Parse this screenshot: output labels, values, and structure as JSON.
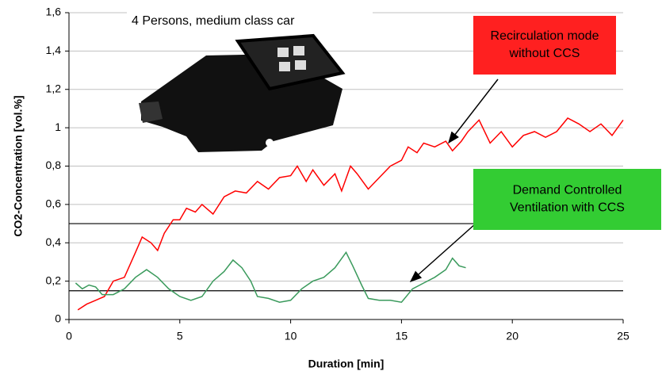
{
  "chart_data": {
    "type": "line",
    "xlabel": "Duration [min]",
    "ylabel": "CO2-Concentration [vol.%]",
    "xlim": [
      0,
      25
    ],
    "xticks": [
      0,
      5,
      10,
      15,
      20,
      25
    ],
    "ylim": [
      0,
      1.6
    ],
    "yticks": [
      0,
      {
        "value": 0.2,
        "label": "0,2"
      },
      {
        "value": 0.4,
        "label": "0,4"
      },
      {
        "value": 0.6,
        "label": "0,6"
      },
      {
        "value": 0.8,
        "label": "0,8"
      },
      1,
      {
        "value": 1.2,
        "label": "1,2"
      },
      {
        "value": 1.4,
        "label": "1,4"
      },
      {
        "value": 1.6,
        "label": "1,6"
      }
    ],
    "grid": true,
    "hlines": [
      0.5,
      0.15
    ],
    "annotations": [
      {
        "lines": [
          "4 Persons, medium class car"
        ]
      },
      {
        "lines": [
          "Recirculation mode",
          "without CCS"
        ],
        "color": "#ff2020"
      },
      {
        "lines": [
          "Demand Controlled",
          "Ventilation with CCS"
        ],
        "color": "#33cc33"
      }
    ],
    "series": [
      {
        "color": "#ff0000",
        "x": [
          0.4,
          0.8,
          1.2,
          1.6,
          2,
          2.5,
          3,
          3.3,
          3.7,
          4,
          4.3,
          4.7,
          5,
          5.3,
          5.7,
          6,
          6.5,
          7,
          7.5,
          8,
          8.5,
          9,
          9.5,
          10,
          10.3,
          10.7,
          11,
          11.5,
          12,
          12.3,
          12.7,
          13,
          13.5,
          14,
          14.5,
          15,
          15.3,
          15.7,
          16,
          16.5,
          17,
          17.3,
          17.7,
          18,
          18.5,
          19,
          19.5,
          20,
          20.5,
          21,
          21.5,
          22,
          22.5,
          23,
          23.5,
          24,
          24.5,
          25
        ],
        "values": [
          0.05,
          0.08,
          0.1,
          0.12,
          0.2,
          0.22,
          0.35,
          0.43,
          0.4,
          0.36,
          0.45,
          0.52,
          0.52,
          0.58,
          0.56,
          0.6,
          0.55,
          0.64,
          0.67,
          0.66,
          0.72,
          0.68,
          0.74,
          0.75,
          0.8,
          0.72,
          0.78,
          0.7,
          0.76,
          0.67,
          0.8,
          0.76,
          0.68,
          0.74,
          0.8,
          0.83,
          0.9,
          0.87,
          0.92,
          0.9,
          0.93,
          0.88,
          0.93,
          0.98,
          1.04,
          0.92,
          0.98,
          0.9,
          0.96,
          0.98,
          0.95,
          0.98,
          1.05,
          1.02,
          0.98,
          1.02,
          0.96,
          1.04
        ]
      },
      {
        "color": "#3a9a5c",
        "x": [
          0.3,
          0.6,
          0.9,
          1.2,
          1.5,
          2,
          2.5,
          3,
          3.5,
          4,
          4.5,
          5,
          5.5,
          6,
          6.5,
          7,
          7.4,
          7.8,
          8.2,
          8.5,
          9,
          9.5,
          10,
          10.5,
          11,
          11.5,
          12,
          12.5,
          12.8,
          13.2,
          13.5,
          14,
          14.5,
          15,
          15.5,
          16,
          16.5,
          17,
          17.3,
          17.6,
          17.9
        ],
        "values": [
          0.19,
          0.16,
          0.18,
          0.17,
          0.13,
          0.13,
          0.16,
          0.22,
          0.26,
          0.22,
          0.16,
          0.12,
          0.1,
          0.12,
          0.2,
          0.25,
          0.31,
          0.27,
          0.2,
          0.12,
          0.11,
          0.09,
          0.1,
          0.16,
          0.2,
          0.22,
          0.27,
          0.35,
          0.28,
          0.18,
          0.11,
          0.1,
          0.1,
          0.09,
          0.16,
          0.19,
          0.22,
          0.26,
          0.32,
          0.28,
          0.27
        ]
      }
    ]
  }
}
